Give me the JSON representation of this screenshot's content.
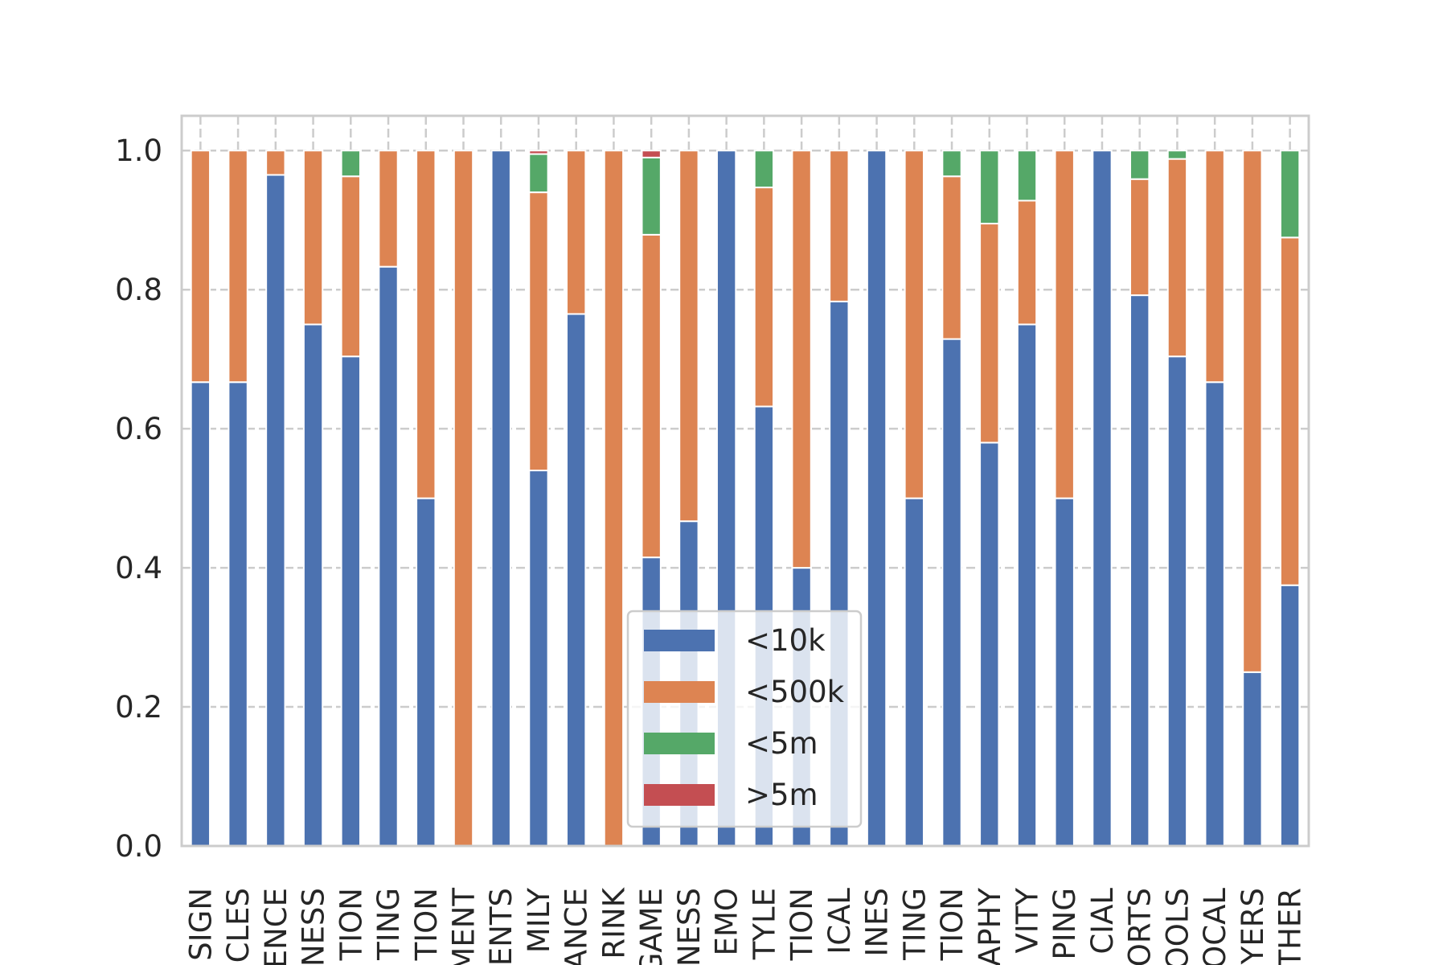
{
  "chart_data": {
    "type": "bar",
    "stacked": true,
    "title": "",
    "xlabel": "",
    "ylabel": "",
    "ylim": [
      0,
      1.05
    ],
    "yticks": [
      "0.0",
      "0.2",
      "0.4",
      "0.6",
      "0.8",
      "1.0"
    ],
    "grid": true,
    "legend_position": "bottom-center",
    "categories": [
      "SIGN",
      "CLES",
      "ENCE",
      "NESS",
      "TION",
      "TING",
      "TION",
      "MENT",
      "ENTS",
      "MILY",
      "ANCE",
      "RINK",
      "GAME",
      "NESS",
      "EMO",
      "TYLE",
      "TION",
      "ICAL",
      "INES",
      "TING",
      "TION",
      "APHY",
      "VITY",
      "PING",
      "CIAL",
      "ORTS",
      "OOLS",
      "OCAL",
      "YERS",
      "THER"
    ],
    "series": [
      {
        "name": "<10k",
        "color": "#4c72b0",
        "values": [
          0.667,
          0.667,
          0.965,
          0.75,
          0.704,
          0.833,
          0.5,
          0.0,
          1.0,
          0.54,
          0.765,
          0.0,
          0.415,
          0.467,
          1.0,
          0.632,
          0.4,
          0.783,
          1.0,
          0.5,
          0.729,
          0.58,
          0.75,
          0.5,
          1.0,
          0.792,
          0.704,
          0.667,
          0.25,
          0.375
        ]
      },
      {
        "name": "<500k",
        "color": "#dd8452",
        "values": [
          0.333,
          0.333,
          0.035,
          0.25,
          0.259,
          0.167,
          0.5,
          1.0,
          0.0,
          0.4,
          0.235,
          1.0,
          0.464,
          0.533,
          0.0,
          0.315,
          0.6,
          0.217,
          0.0,
          0.5,
          0.234,
          0.315,
          0.178,
          0.5,
          0.0,
          0.167,
          0.284,
          0.333,
          0.75,
          0.5
        ]
      },
      {
        "name": "<5m",
        "color": "#55a868",
        "values": [
          0.0,
          0.0,
          0.0,
          0.0,
          0.037,
          0.0,
          0.0,
          0.0,
          0.0,
          0.055,
          0.0,
          0.0,
          0.111,
          0.0,
          0.0,
          0.053,
          0.0,
          0.0,
          0.0,
          0.0,
          0.037,
          0.105,
          0.072,
          0.0,
          0.0,
          0.041,
          0.012,
          0.0,
          0.0,
          0.125
        ]
      },
      {
        "name": ">5m",
        "color": "#c44e52",
        "values": [
          0.0,
          0.0,
          0.0,
          0.0,
          0.0,
          0.0,
          0.0,
          0.0,
          0.0,
          0.005,
          0.0,
          0.0,
          0.01,
          0.0,
          0.0,
          0.0,
          0.0,
          0.0,
          0.0,
          0.0,
          0.0,
          0.0,
          0.0,
          0.0,
          0.0,
          0.0,
          0.0,
          0.0,
          0.0,
          0.0
        ]
      }
    ]
  },
  "colors": {
    "background": "#ffffff",
    "grid": "#cccccc",
    "axes_edge": "#cccccc",
    "text": "#262626"
  }
}
